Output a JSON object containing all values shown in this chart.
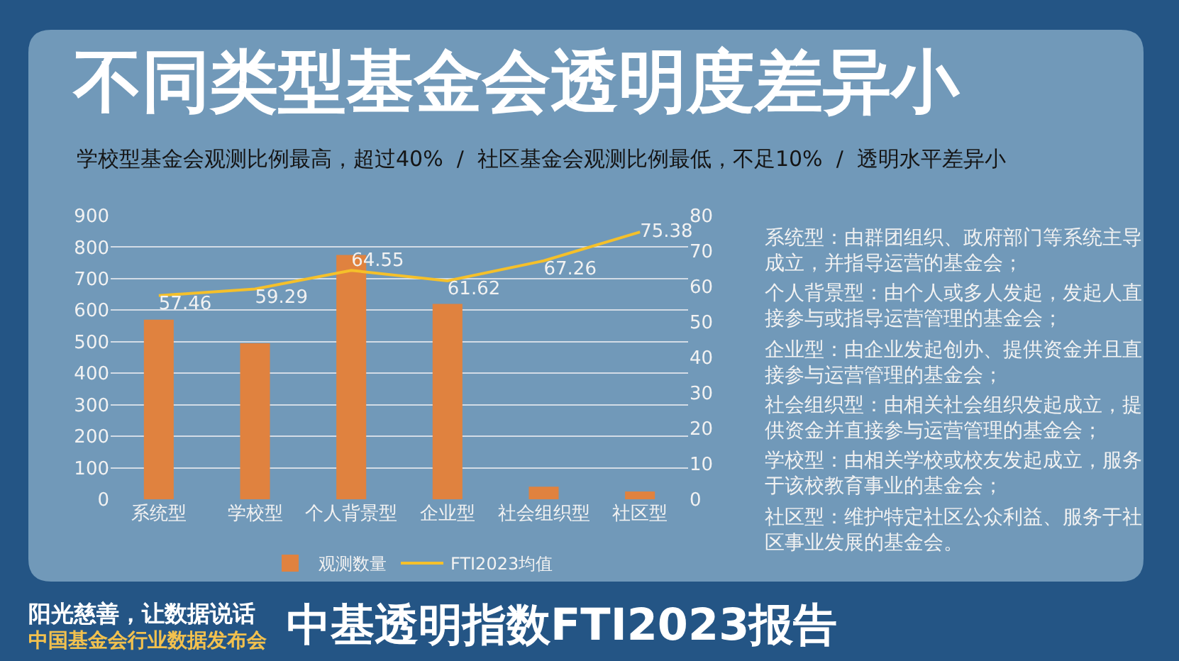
{
  "chart_data": {
    "type": "bar",
    "title": "不同类型基金会透明度差异小",
    "subtitle": "学校型基金会观测比例最高，超过40%  /  社区基金会观测比例最低，不足10%  /  透明水平差异小",
    "categories": [
      "系统型",
      "学校型",
      "个人背景型",
      "企业型",
      "社会组织型",
      "社区型"
    ],
    "series": [
      {
        "name": "观测数量",
        "color": "#e0823f",
        "values": [
          570,
          495,
          775,
          620,
          40,
          25
        ]
      },
      {
        "name": "FTI2023均值",
        "type": "line",
        "axis": "y2",
        "color": "#f5c02a",
        "values": [
          57.46,
          59.29,
          64.55,
          61.62,
          67.26,
          75.38
        ],
        "value_labels": [
          "57.46",
          "59.29",
          "64.55",
          "61.62",
          "67.26",
          "75.38"
        ]
      }
    ],
    "ylim": [
      0,
      900
    ],
    "yticks": [
      0,
      100,
      200,
      300,
      400,
      500,
      600,
      700,
      800,
      900
    ],
    "y2lim": [
      0,
      80
    ],
    "y2ticks": [
      0,
      10,
      20,
      30,
      40,
      50,
      60,
      70,
      80
    ],
    "grid": "y",
    "legend": "bottom",
    "annotations": [
      "系统型：由群团组织、政府部门等系统主导成立，并指导运营的基金会；",
      "个人背景型：由个人或多人发起，发起人直接参与或指导运营管理的基金会；",
      "企业型：由企业发起创办、提供资金并且直接参与运营管理的基金会；",
      "社会组织型：由相关社会组织发起成立，提供资金并直接参与运营管理的基金会；",
      "学校型：由相关学校或校友发起成立，服务于该校教育事业的基金会；",
      "社区型：维护特定社区公众利益、服务于社区事业发展的基金会。",
      "阳光慈善，让数据说话",
      "中国基金会行业数据发布会",
      "中基透明指数FTI2023报告"
    ]
  }
}
